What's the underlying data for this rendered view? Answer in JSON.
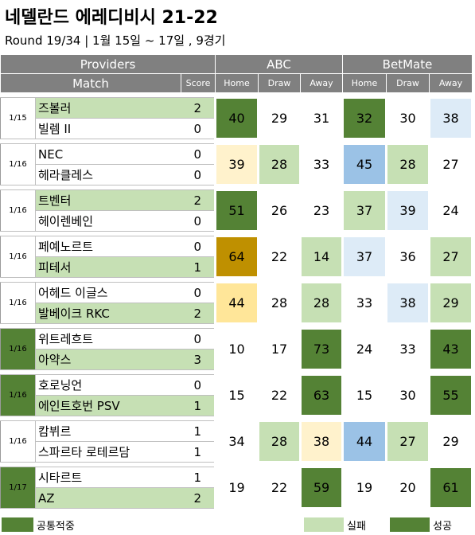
{
  "title": "네델란드 에레디비시 21-22",
  "subtitle": "Round 19/34 | 1월 15일 ~ 17일 , 9경기",
  "colors": {
    "header": "#808080",
    "light": "#c6e0b4",
    "dark": "#548235",
    "yellow": "#ffe699",
    "cream": "#fff2cc",
    "gold": "#bf9000",
    "blue": "#9bc2e6",
    "lightblue": "#ddebf7",
    "white": "#ffffff"
  },
  "header": {
    "providers": "Providers",
    "match": "Match",
    "score": "Score",
    "provider_names": [
      "ABC",
      "BetMate"
    ],
    "cols": [
      "Home",
      "Draw",
      "Away",
      "Home",
      "Draw",
      "Away"
    ]
  },
  "matches": [
    {
      "date": "1/15",
      "date_color": "white",
      "home": "즈볼러",
      "home_score": "2",
      "home_color": "light",
      "away": "빌렘 II",
      "away_score": "0",
      "away_color": "white",
      "odds": [
        {
          "v": "40",
          "c": "dark"
        },
        {
          "v": "29",
          "c": "white"
        },
        {
          "v": "31",
          "c": "white"
        },
        {
          "v": "32",
          "c": "dark"
        },
        {
          "v": "30",
          "c": "white"
        },
        {
          "v": "38",
          "c": "lightblue"
        }
      ]
    },
    {
      "date": "1/16",
      "date_color": "white",
      "home": "NEC",
      "home_score": "0",
      "home_color": "white",
      "away": "헤라클레스",
      "away_score": "0",
      "away_color": "white",
      "odds": [
        {
          "v": "39",
          "c": "cream"
        },
        {
          "v": "28",
          "c": "light"
        },
        {
          "v": "33",
          "c": "white"
        },
        {
          "v": "45",
          "c": "blue"
        },
        {
          "v": "28",
          "c": "light"
        },
        {
          "v": "27",
          "c": "white"
        }
      ]
    },
    {
      "date": "1/16",
      "date_color": "white",
      "home": "트벤터",
      "home_score": "2",
      "home_color": "light",
      "away": "헤이렌베인",
      "away_score": "0",
      "away_color": "white",
      "odds": [
        {
          "v": "51",
          "c": "dark"
        },
        {
          "v": "26",
          "c": "white"
        },
        {
          "v": "23",
          "c": "white"
        },
        {
          "v": "37",
          "c": "light"
        },
        {
          "v": "39",
          "c": "lightblue"
        },
        {
          "v": "24",
          "c": "white"
        }
      ]
    },
    {
      "date": "1/16",
      "date_color": "white",
      "home": "페예노르트",
      "home_score": "0",
      "home_color": "white",
      "away": "피테서",
      "away_score": "1",
      "away_color": "light",
      "odds": [
        {
          "v": "64",
          "c": "gold"
        },
        {
          "v": "22",
          "c": "white"
        },
        {
          "v": "14",
          "c": "light"
        },
        {
          "v": "37",
          "c": "lightblue"
        },
        {
          "v": "36",
          "c": "white"
        },
        {
          "v": "27",
          "c": "light"
        }
      ]
    },
    {
      "date": "1/16",
      "date_color": "white",
      "home": "어헤드 이글스",
      "home_score": "0",
      "home_color": "white",
      "away": "발베이크 RKC",
      "away_score": "2",
      "away_color": "light",
      "odds": [
        {
          "v": "44",
          "c": "yellow"
        },
        {
          "v": "28",
          "c": "white"
        },
        {
          "v": "28",
          "c": "light"
        },
        {
          "v": "33",
          "c": "white"
        },
        {
          "v": "38",
          "c": "lightblue"
        },
        {
          "v": "29",
          "c": "light"
        }
      ]
    },
    {
      "date": "1/16",
      "date_color": "dark",
      "home": "위트레흐트",
      "home_score": "0",
      "home_color": "white",
      "away": "아약스",
      "away_score": "3",
      "away_color": "light",
      "odds": [
        {
          "v": "10",
          "c": "white"
        },
        {
          "v": "17",
          "c": "white"
        },
        {
          "v": "73",
          "c": "dark"
        },
        {
          "v": "24",
          "c": "white"
        },
        {
          "v": "33",
          "c": "white"
        },
        {
          "v": "43",
          "c": "dark"
        }
      ]
    },
    {
      "date": "1/16",
      "date_color": "dark",
      "home": "호로닝언",
      "home_score": "0",
      "home_color": "white",
      "away": "에인트호번 PSV",
      "away_score": "1",
      "away_color": "light",
      "odds": [
        {
          "v": "15",
          "c": "white"
        },
        {
          "v": "22",
          "c": "white"
        },
        {
          "v": "63",
          "c": "dark"
        },
        {
          "v": "15",
          "c": "white"
        },
        {
          "v": "30",
          "c": "white"
        },
        {
          "v": "55",
          "c": "dark"
        }
      ]
    },
    {
      "date": "1/16",
      "date_color": "white",
      "home": "캄뷔르",
      "home_score": "1",
      "home_color": "white",
      "away": "스파르타 로테르담",
      "away_score": "1",
      "away_color": "white",
      "odds": [
        {
          "v": "34",
          "c": "white"
        },
        {
          "v": "28",
          "c": "light"
        },
        {
          "v": "38",
          "c": "cream"
        },
        {
          "v": "44",
          "c": "blue"
        },
        {
          "v": "27",
          "c": "light"
        },
        {
          "v": "29",
          "c": "white"
        }
      ]
    },
    {
      "date": "1/17",
      "date_color": "dark",
      "home": "시타르트",
      "home_score": "1",
      "home_color": "white",
      "away": "AZ",
      "away_score": "2",
      "away_color": "light",
      "odds": [
        {
          "v": "19",
          "c": "white"
        },
        {
          "v": "22",
          "c": "white"
        },
        {
          "v": "59",
          "c": "dark"
        },
        {
          "v": "19",
          "c": "white"
        },
        {
          "v": "20",
          "c": "white"
        },
        {
          "v": "61",
          "c": "dark"
        }
      ]
    }
  ],
  "legend": [
    {
      "label": "공통적중",
      "color": "dark"
    },
    {
      "label": "실패",
      "color": "light"
    },
    {
      "label": "성공",
      "color": "dark"
    }
  ]
}
